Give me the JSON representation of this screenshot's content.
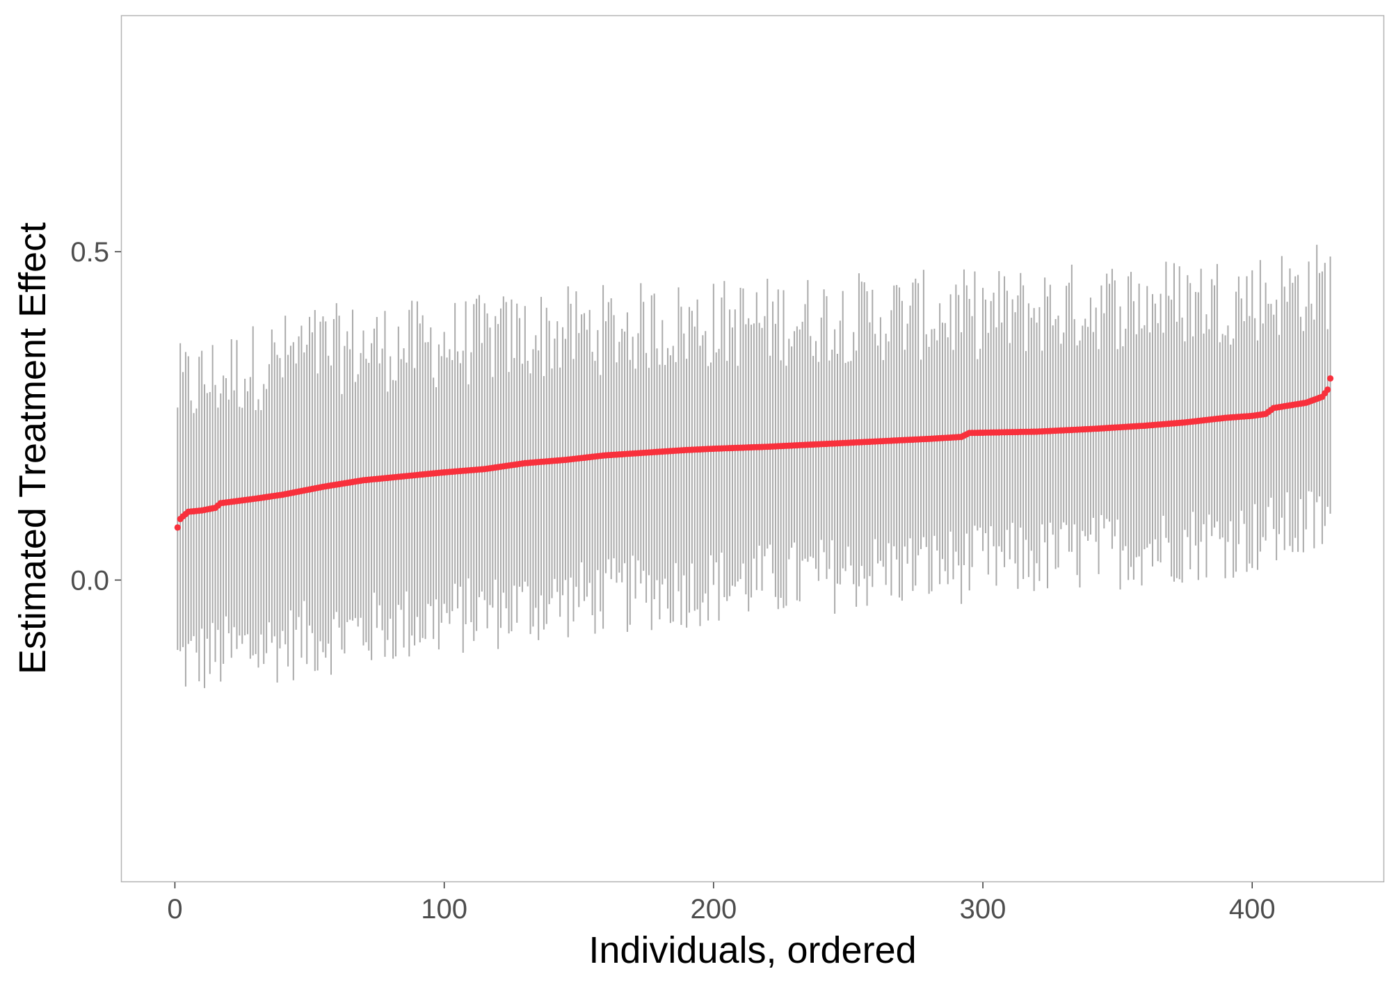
{
  "chart_data": {
    "type": "scatter",
    "title": "",
    "xlabel": "Individuals, ordered",
    "ylabel": "Estimated Treatment Effect",
    "xlim": [
      -20,
      449
    ],
    "ylim": [
      -0.46,
      0.86
    ],
    "x_ticks": [
      0,
      100,
      200,
      300,
      400
    ],
    "y_ticks": [
      0.0,
      0.5
    ],
    "grid": false,
    "legend": "none",
    "n_points": 429,
    "colors": {
      "estimate": "#f8303c",
      "interval": "#aaaaaa",
      "panel_border": "#b3b3b3"
    },
    "series": [
      {
        "points": [
          [
            1,
            0.08
          ],
          [
            2,
            0.093
          ],
          [
            3,
            0.097
          ],
          [
            5,
            0.104
          ],
          [
            10,
            0.106
          ],
          [
            15,
            0.11
          ],
          [
            17,
            0.117
          ],
          [
            30,
            0.124
          ],
          [
            40,
            0.13
          ],
          [
            55,
            0.142
          ],
          [
            70,
            0.152
          ],
          [
            85,
            0.158
          ],
          [
            100,
            0.164
          ],
          [
            115,
            0.169
          ],
          [
            130,
            0.178
          ],
          [
            145,
            0.183
          ],
          [
            160,
            0.19
          ],
          [
            175,
            0.194
          ],
          [
            190,
            0.198
          ],
          [
            200,
            0.2
          ],
          [
            220,
            0.203
          ],
          [
            240,
            0.207
          ],
          [
            260,
            0.211
          ],
          [
            280,
            0.215
          ],
          [
            292,
            0.218
          ],
          [
            295,
            0.224
          ],
          [
            320,
            0.226
          ],
          [
            340,
            0.23
          ],
          [
            360,
            0.235
          ],
          [
            375,
            0.24
          ],
          [
            390,
            0.247
          ],
          [
            400,
            0.25
          ],
          [
            405,
            0.253
          ],
          [
            408,
            0.262
          ],
          [
            420,
            0.27
          ],
          [
            424,
            0.276
          ],
          [
            426,
            0.279
          ],
          [
            428,
            0.29
          ],
          [
            429,
            0.307
          ]
        ],
        "interval_lower": [
          [
            1,
            -0.125
          ],
          [
            50,
            -0.09
          ],
          [
            100,
            -0.06
          ],
          [
            150,
            -0.03
          ],
          [
            200,
            -0.01
          ],
          [
            250,
            0.01
          ],
          [
            300,
            0.025
          ],
          [
            350,
            0.045
          ],
          [
            400,
            0.065
          ],
          [
            429,
            0.09
          ]
        ],
        "interval_upper": [
          [
            1,
            0.29
          ],
          [
            50,
            0.35
          ],
          [
            100,
            0.36
          ],
          [
            150,
            0.38
          ],
          [
            200,
            0.39
          ],
          [
            250,
            0.4
          ],
          [
            300,
            0.405
          ],
          [
            350,
            0.42
          ],
          [
            400,
            0.43
          ],
          [
            429,
            0.45
          ]
        ]
      }
    ]
  }
}
